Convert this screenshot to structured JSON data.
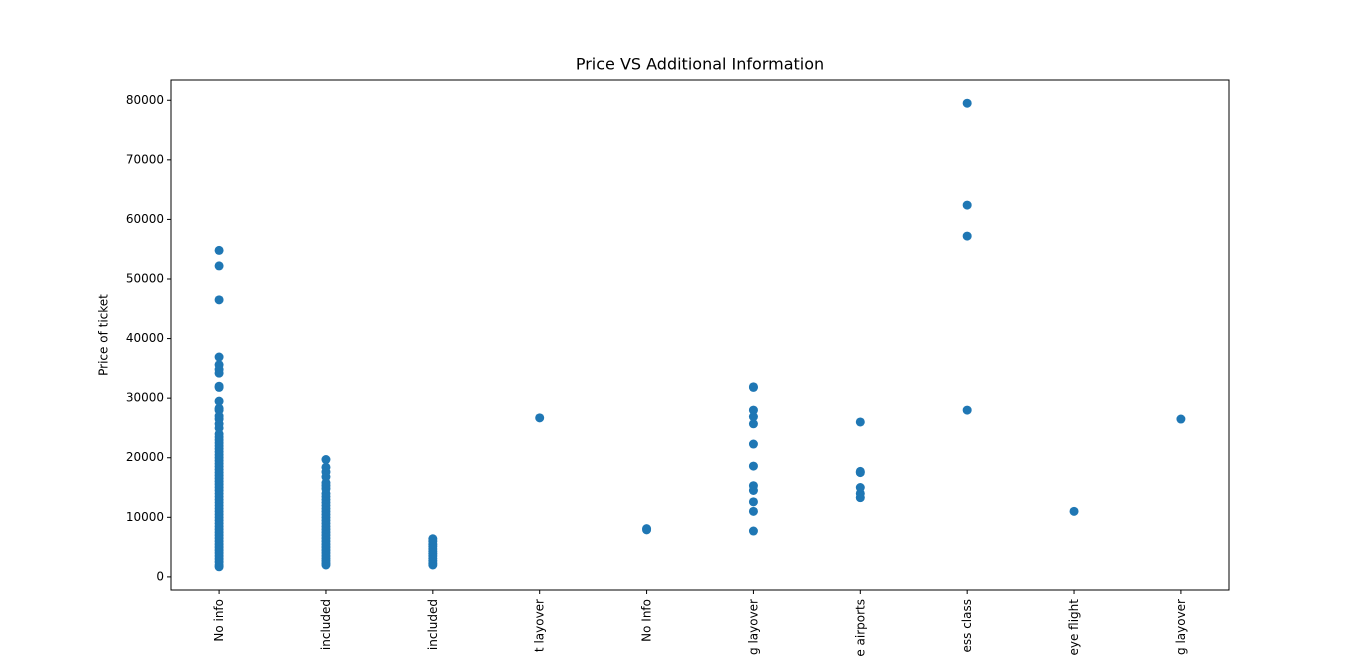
{
  "chart_data": {
    "type": "scatter",
    "title": "Price VS Additional Information",
    "y_label": "Price of ticket",
    "categories": [
      "No info",
      "included",
      "included",
      "t layover",
      "No Info",
      "g layover",
      "e airports",
      "ess class",
      "eye flight",
      "g layover"
    ],
    "color": "#1f77b4",
    "values": [
      [
        1700,
        2000,
        2500,
        3000,
        3500,
        4000,
        4500,
        5000,
        5500,
        6000,
        6500,
        7000,
        7500,
        8000,
        8500,
        9000,
        9500,
        10000,
        10500,
        11000,
        11500,
        12000,
        12500,
        13000,
        13500,
        14000,
        14500,
        15000,
        15500,
        16000,
        16500,
        17000,
        17500,
        18000,
        18500,
        19000,
        19500,
        20000,
        20500,
        21000,
        21500,
        22000,
        22500,
        23000,
        23500,
        24000,
        25000,
        25700,
        26500,
        27000,
        28000,
        28300,
        29500,
        31800,
        32000,
        34200,
        34800,
        35600,
        36900,
        46500,
        52200,
        54800
      ],
      [
        2000,
        2300,
        2700,
        3100,
        3500,
        4000,
        4500,
        5000,
        5500,
        6000,
        6500,
        7000,
        7500,
        8000,
        8500,
        9000,
        9500,
        10000,
        10500,
        11000,
        11500,
        12000,
        12500,
        13000,
        13500,
        14000,
        14800,
        15300,
        15800,
        16800,
        17600,
        18400,
        19700
      ],
      [
        2000,
        2300,
        2700,
        3100,
        3500,
        3900,
        4300,
        4700,
        5100,
        5500,
        6000,
        6400
      ],
      [
        26700
      ],
      [
        7900,
        8100
      ],
      [
        7700,
        11000,
        12600,
        14500,
        15300,
        18600,
        22300,
        25700,
        26900,
        28000,
        31800,
        31900
      ],
      [
        13300,
        14000,
        15000,
        17500,
        17700,
        26000
      ],
      [
        79500,
        62400,
        57200,
        28000
      ],
      [
        11000
      ],
      [
        26500
      ]
    ],
    "xlim": [
      -0.45,
      9.45
    ],
    "ylim": [
      -2200,
      83400
    ],
    "yticks": [
      0,
      10000,
      20000,
      30000,
      40000,
      50000,
      60000,
      70000,
      80000
    ]
  }
}
